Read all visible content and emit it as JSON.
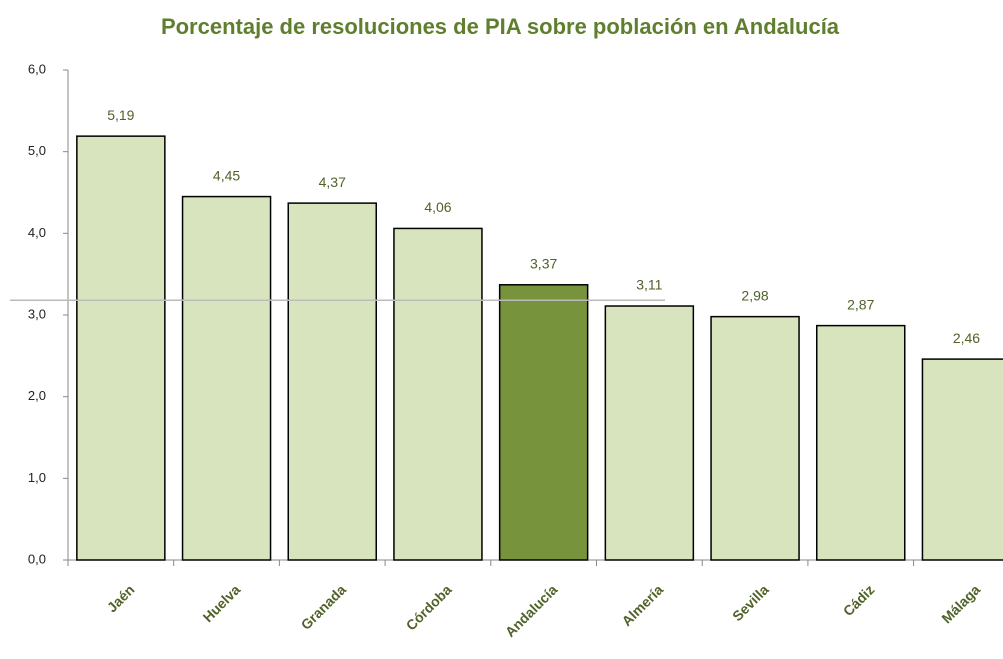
{
  "chart_data": {
    "type": "bar",
    "title": "Porcentaje de resoluciones de PIA sobre población en Andalucía",
    "categories": [
      "Jaén",
      "Huelva",
      "Granada",
      "Córdoba",
      "Andalucía",
      "Almería",
      "Sevilla",
      "Cádiz",
      "Málaga"
    ],
    "values": [
      5.19,
      4.45,
      4.37,
      4.06,
      3.37,
      3.11,
      2.98,
      2.87,
      2.46
    ],
    "value_labels": [
      "5,19",
      "4,45",
      "4,37",
      "4,06",
      "3,37",
      "3,11",
      "2,98",
      "2,87",
      "2,46"
    ],
    "colors": [
      "#d7e4bd",
      "#d7e4bd",
      "#d7e4bd",
      "#d7e4bd",
      "#77933c",
      "#d7e4bd",
      "#d7e4bd",
      "#d7e4bd",
      "#d7e4bd"
    ],
    "reference_line": 3.18,
    "ylim": [
      0,
      6
    ],
    "yticks": [
      {
        "value": 0,
        "label": "0,0"
      },
      {
        "value": 1,
        "label": "1,0"
      },
      {
        "value": 2,
        "label": "2,0"
      },
      {
        "value": 3,
        "label": "3,0"
      },
      {
        "value": 4,
        "label": "4,0"
      },
      {
        "value": 5,
        "label": "5,0"
      },
      {
        "value": 6,
        "label": "6,0"
      }
    ],
    "grid": false
  }
}
